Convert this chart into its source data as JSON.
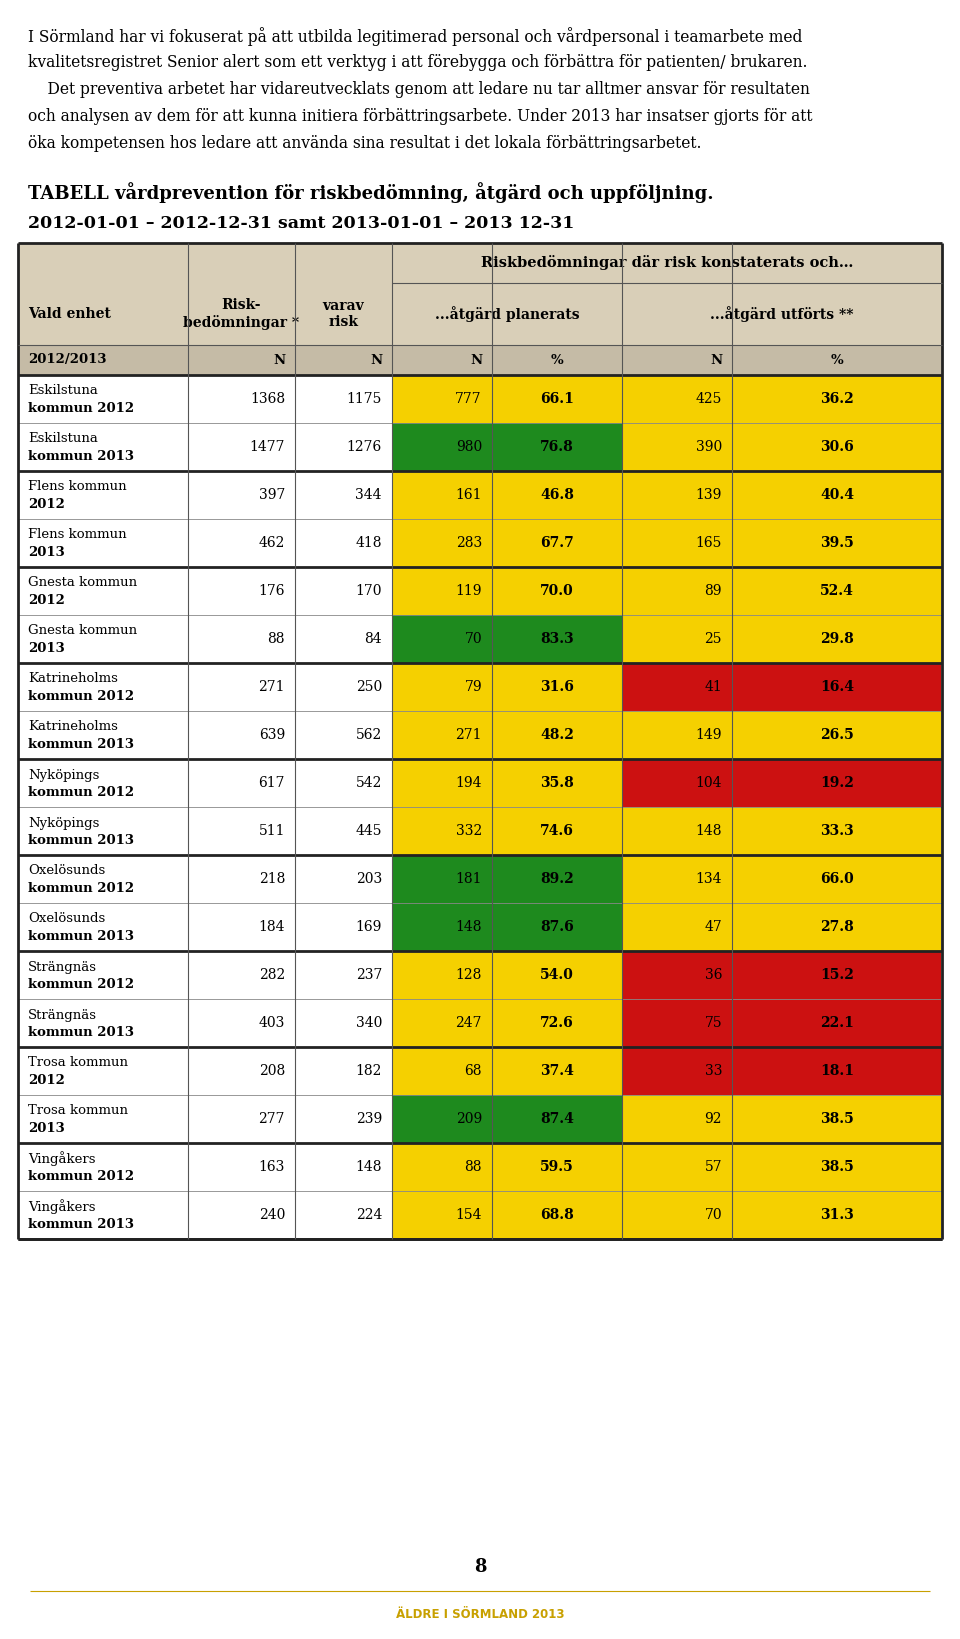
{
  "intro_lines": [
    "I Sörmland har vi fokuserat på att utbilda legitimerad personal och vårdpersonal i teamarbete med",
    "kvalitetsregistret Senior alert som ett verktyg i att förebygga och förbättra för patienten/ brukaren.",
    "    Det preventiva arbetet har vidareutvecklats genom att ledare nu tar alltmer ansvar för resultaten",
    "och analysen av dem för att kunna initiera förbättringsarbete. Under 2013 har insatser gjorts för att",
    "öka kompetensen hos ledare att använda sina resultat i det lokala förbättringsarbetet."
  ],
  "table_title": "TABELL vårdprevention för riskbedömning, åtgärd och uppföljning.",
  "table_subtitle": "2012-01-01 – 2012-12-31 samt 2013-01-01 – 2013 12-31",
  "span_header": "Riskbedömningar där risk konstaterats och…",
  "subheader": [
    "2012/2013",
    "N",
    "N",
    "N",
    "%",
    "N",
    "%"
  ],
  "rows": [
    {
      "label1": "Eskilstuna",
      "label2": "kommun 2012",
      "r1": 1368,
      "r2": 1175,
      "n1": 777,
      "pct1": "66.1",
      "n2": 425,
      "pct2": "36.2",
      "col_pct1": "yellow",
      "col_pct2": "yellow",
      "thick_below": false
    },
    {
      "label1": "Eskilstuna",
      "label2": "kommun 2013",
      "r1": 1477,
      "r2": 1276,
      "n1": 980,
      "pct1": "76.8",
      "n2": 390,
      "pct2": "30.6",
      "col_pct1": "green",
      "col_pct2": "yellow",
      "thick_below": true
    },
    {
      "label1": "Flens kommun",
      "label2": "2012",
      "r1": 397,
      "r2": 344,
      "n1": 161,
      "pct1": "46.8",
      "n2": 139,
      "pct2": "40.4",
      "col_pct1": "yellow",
      "col_pct2": "yellow",
      "thick_below": false
    },
    {
      "label1": "Flens kommun",
      "label2": "2013",
      "r1": 462,
      "r2": 418,
      "n1": 283,
      "pct1": "67.7",
      "n2": 165,
      "pct2": "39.5",
      "col_pct1": "yellow",
      "col_pct2": "yellow",
      "thick_below": true
    },
    {
      "label1": "Gnesta kommun",
      "label2": "2012",
      "r1": 176,
      "r2": 170,
      "n1": 119,
      "pct1": "70.0",
      "n2": 89,
      "pct2": "52.4",
      "col_pct1": "yellow",
      "col_pct2": "yellow",
      "thick_below": false
    },
    {
      "label1": "Gnesta kommun",
      "label2": "2013",
      "r1": 88,
      "r2": 84,
      "n1": 70,
      "pct1": "83.3",
      "n2": 25,
      "pct2": "29.8",
      "col_pct1": "green",
      "col_pct2": "yellow",
      "thick_below": true
    },
    {
      "label1": "Katrineholms",
      "label2": "kommun 2012",
      "r1": 271,
      "r2": 250,
      "n1": 79,
      "pct1": "31.6",
      "n2": 41,
      "pct2": "16.4",
      "col_pct1": "yellow",
      "col_pct2": "red",
      "thick_below": false
    },
    {
      "label1": "Katrineholms",
      "label2": "kommun 2013",
      "r1": 639,
      "r2": 562,
      "n1": 271,
      "pct1": "48.2",
      "n2": 149,
      "pct2": "26.5",
      "col_pct1": "yellow",
      "col_pct2": "yellow",
      "thick_below": true
    },
    {
      "label1": "Nyköpings",
      "label2": "kommun 2012",
      "r1": 617,
      "r2": 542,
      "n1": 194,
      "pct1": "35.8",
      "n2": 104,
      "pct2": "19.2",
      "col_pct1": "yellow",
      "col_pct2": "red",
      "thick_below": false
    },
    {
      "label1": "Nyköpings",
      "label2": "kommun 2013",
      "r1": 511,
      "r2": 445,
      "n1": 332,
      "pct1": "74.6",
      "n2": 148,
      "pct2": "33.3",
      "col_pct1": "yellow",
      "col_pct2": "yellow",
      "thick_below": true
    },
    {
      "label1": "Oxelösunds",
      "label2": "kommun 2012",
      "r1": 218,
      "r2": 203,
      "n1": 181,
      "pct1": "89.2",
      "n2": 134,
      "pct2": "66.0",
      "col_pct1": "green",
      "col_pct2": "yellow",
      "thick_below": false
    },
    {
      "label1": "Oxelösunds",
      "label2": "kommun 2013",
      "r1": 184,
      "r2": 169,
      "n1": 148,
      "pct1": "87.6",
      "n2": 47,
      "pct2": "27.8",
      "col_pct1": "green",
      "col_pct2": "yellow",
      "thick_below": true
    },
    {
      "label1": "Strängnäs",
      "label2": "kommun 2012",
      "r1": 282,
      "r2": 237,
      "n1": 128,
      "pct1": "54.0",
      "n2": 36,
      "pct2": "15.2",
      "col_pct1": "yellow",
      "col_pct2": "red",
      "thick_below": false
    },
    {
      "label1": "Strängnäs",
      "label2": "kommun 2013",
      "r1": 403,
      "r2": 340,
      "n1": 247,
      "pct1": "72.6",
      "n2": 75,
      "pct2": "22.1",
      "col_pct1": "yellow",
      "col_pct2": "red",
      "thick_below": true
    },
    {
      "label1": "Trosa kommun",
      "label2": "2012",
      "r1": 208,
      "r2": 182,
      "n1": 68,
      "pct1": "37.4",
      "n2": 33,
      "pct2": "18.1",
      "col_pct1": "yellow",
      "col_pct2": "red",
      "thick_below": false
    },
    {
      "label1": "Trosa kommun",
      "label2": "2013",
      "r1": 277,
      "r2": 239,
      "n1": 209,
      "pct1": "87.4",
      "n2": 92,
      "pct2": "38.5",
      "col_pct1": "green",
      "col_pct2": "yellow",
      "thick_below": true
    },
    {
      "label1": "Vingåkers",
      "label2": "kommun 2012",
      "r1": 163,
      "r2": 148,
      "n1": 88,
      "pct1": "59.5",
      "n2": 57,
      "pct2": "38.5",
      "col_pct1": "yellow",
      "col_pct2": "yellow",
      "thick_below": false
    },
    {
      "label1": "Vingåkers",
      "label2": "kommun 2013",
      "r1": 240,
      "r2": 224,
      "n1": 154,
      "pct1": "68.8",
      "n2": 70,
      "pct2": "31.3",
      "col_pct1": "yellow",
      "col_pct2": "yellow",
      "thick_below": true
    }
  ],
  "color_map": {
    "green": "#1e8a1e",
    "yellow": "#f5d000",
    "red": "#cc1111"
  },
  "header_bg": "#d9cfb8",
  "subheader_bg": "#c5bba6",
  "page_number": "8",
  "footer_text": "ÄLDRE I SÖRMLAND 2013",
  "footer_line_color": "#c8a000",
  "footer_text_color": "#c8a000",
  "background_color": "#ffffff"
}
